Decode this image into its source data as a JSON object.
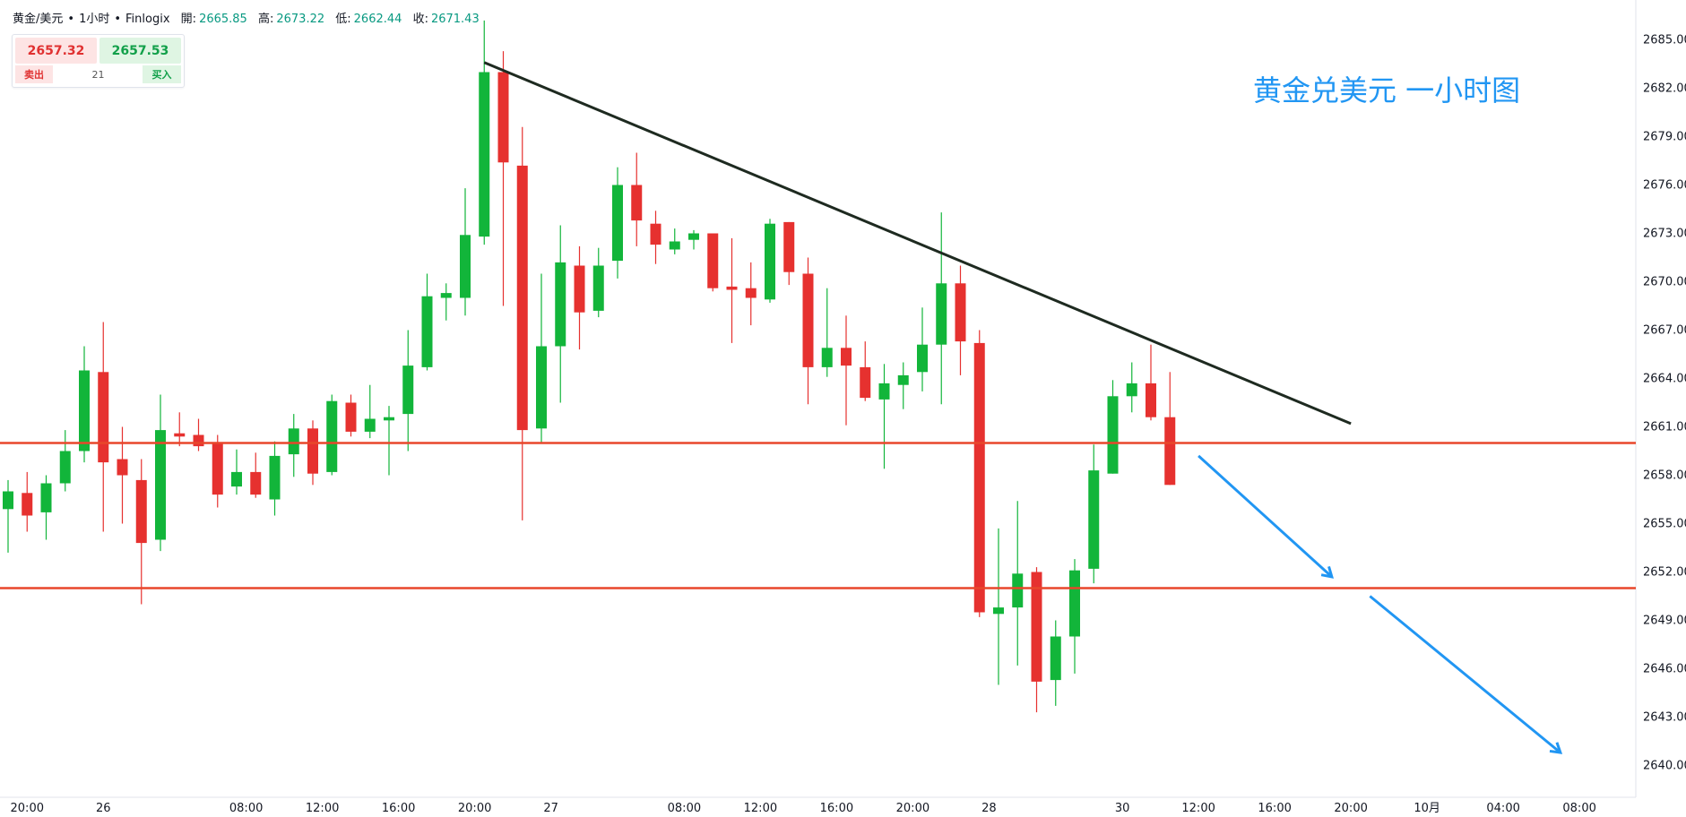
{
  "header": {
    "symbol": "黄金/美元",
    "interval": "1小时",
    "source": "Finlogix",
    "dot": "•",
    "open_label": "開:",
    "open": "2665.85",
    "high_label": "高:",
    "high": "2673.22",
    "low_label": "低:",
    "low": "2662.44",
    "close_label": "收:",
    "close": "2671.43"
  },
  "trade": {
    "sell_price": "2657.32",
    "buy_price": "2657.53",
    "sell_label": "卖出",
    "buy_label": "买入",
    "spread": "21"
  },
  "annotation": "黄金兑美元 一小时图",
  "colors": {
    "up": "#12b53a",
    "down": "#e6312f",
    "trendline": "#1e2a20",
    "support": "#e8472b",
    "arrow": "#2196f3",
    "grid_text": "#131722"
  },
  "chart_data": {
    "type": "candlestick",
    "y_ticks": [
      "2685.00",
      "2682.00",
      "2679.00",
      "2676.00",
      "2673.00",
      "2670.00",
      "2667.00",
      "2664.00",
      "2661.00",
      "2658.00",
      "2655.00",
      "2652.00",
      "2649.00",
      "2646.00",
      "2643.00",
      "2640.00"
    ],
    "ylim": [
      2638.5,
      2686.5
    ],
    "x_ticks": [
      {
        "label": "20:00",
        "i": 1
      },
      {
        "label": "26",
        "i": 5
      },
      {
        "label": "08:00",
        "i": 12.5
      },
      {
        "label": "12:00",
        "i": 16.5
      },
      {
        "label": "16:00",
        "i": 20.5
      },
      {
        "label": "20:00",
        "i": 24.5
      },
      {
        "label": "27",
        "i": 28.5
      },
      {
        "label": "08:00",
        "i": 35.5
      },
      {
        "label": "12:00",
        "i": 39.5
      },
      {
        "label": "16:00",
        "i": 43.5
      },
      {
        "label": "20:00",
        "i": 47.5
      },
      {
        "label": "28",
        "i": 51.5
      },
      {
        "label": "30",
        "i": 58.5
      },
      {
        "label": "12:00",
        "i": 62.5
      },
      {
        "label": "16:00",
        "i": 66.5
      },
      {
        "label": "20:00",
        "i": 70.5
      },
      {
        "label": "10月",
        "i": 74.5
      },
      {
        "label": "04:00",
        "i": 78.5
      },
      {
        "label": "08:00",
        "i": 82.5
      }
    ],
    "candles": [
      {
        "o": 2655.9,
        "h": 2657.7,
        "l": 2653.2,
        "c": 2657.0
      },
      {
        "o": 2656.9,
        "h": 2658.2,
        "l": 2654.5,
        "c": 2655.5
      },
      {
        "o": 2655.7,
        "h": 2658.0,
        "l": 2654.0,
        "c": 2657.5
      },
      {
        "o": 2657.5,
        "h": 2660.8,
        "l": 2657.0,
        "c": 2659.5
      },
      {
        "o": 2659.5,
        "h": 2666.0,
        "l": 2658.8,
        "c": 2664.5
      },
      {
        "o": 2664.4,
        "h": 2667.5,
        "l": 2654.5,
        "c": 2658.8
      },
      {
        "o": 2659.0,
        "h": 2661.0,
        "l": 2655.0,
        "c": 2658.0
      },
      {
        "o": 2657.7,
        "h": 2659.0,
        "l": 2650.0,
        "c": 2653.8
      },
      {
        "o": 2654.0,
        "h": 2663.0,
        "l": 2653.3,
        "c": 2660.8
      },
      {
        "o": 2660.6,
        "h": 2661.9,
        "l": 2659.8,
        "c": 2660.4
      },
      {
        "o": 2660.5,
        "h": 2661.5,
        "l": 2659.5,
        "c": 2659.8
      },
      {
        "o": 2660.0,
        "h": 2660.5,
        "l": 2656.0,
        "c": 2656.8
      },
      {
        "o": 2657.3,
        "h": 2659.6,
        "l": 2656.8,
        "c": 2658.2
      },
      {
        "o": 2658.2,
        "h": 2659.4,
        "l": 2656.6,
        "c": 2656.8
      },
      {
        "o": 2656.5,
        "h": 2660.1,
        "l": 2655.5,
        "c": 2659.2
      },
      {
        "o": 2659.3,
        "h": 2661.8,
        "l": 2657.9,
        "c": 2660.9
      },
      {
        "o": 2660.9,
        "h": 2661.4,
        "l": 2657.4,
        "c": 2658.1
      },
      {
        "o": 2658.2,
        "h": 2663.0,
        "l": 2658.0,
        "c": 2662.6
      },
      {
        "o": 2662.5,
        "h": 2663.0,
        "l": 2660.4,
        "c": 2660.7
      },
      {
        "o": 2660.7,
        "h": 2663.6,
        "l": 2660.3,
        "c": 2661.5
      },
      {
        "o": 2661.4,
        "h": 2662.3,
        "l": 2658.0,
        "c": 2661.6
      },
      {
        "o": 2661.8,
        "h": 2667.0,
        "l": 2659.5,
        "c": 2664.8
      },
      {
        "o": 2664.7,
        "h": 2670.5,
        "l": 2664.5,
        "c": 2669.1
      },
      {
        "o": 2669.0,
        "h": 2669.9,
        "l": 2667.6,
        "c": 2669.3
      },
      {
        "o": 2669.0,
        "h": 2675.8,
        "l": 2667.9,
        "c": 2672.9
      },
      {
        "o": 2672.8,
        "h": 2686.2,
        "l": 2672.3,
        "c": 2683.0
      },
      {
        "o": 2683.0,
        "h": 2684.3,
        "l": 2668.5,
        "c": 2677.4
      },
      {
        "o": 2677.2,
        "h": 2679.6,
        "l": 2655.2,
        "c": 2660.8
      },
      {
        "o": 2660.9,
        "h": 2670.5,
        "l": 2660.0,
        "c": 2666.0
      },
      {
        "o": 2666.0,
        "h": 2673.5,
        "l": 2662.5,
        "c": 2671.2
      },
      {
        "o": 2671.0,
        "h": 2672.2,
        "l": 2665.8,
        "c": 2668.1
      },
      {
        "o": 2668.2,
        "h": 2672.1,
        "l": 2667.8,
        "c": 2671.0
      },
      {
        "o": 2671.3,
        "h": 2677.1,
        "l": 2670.2,
        "c": 2676.0
      },
      {
        "o": 2676.0,
        "h": 2678.0,
        "l": 2672.2,
        "c": 2673.8
      },
      {
        "o": 2673.6,
        "h": 2674.4,
        "l": 2671.1,
        "c": 2672.3
      },
      {
        "o": 2672.0,
        "h": 2673.3,
        "l": 2671.7,
        "c": 2672.5
      },
      {
        "o": 2672.6,
        "h": 2673.2,
        "l": 2672.0,
        "c": 2673.0
      },
      {
        "o": 2673.0,
        "h": 2673.0,
        "l": 2669.4,
        "c": 2669.6
      },
      {
        "o": 2669.7,
        "h": 2672.7,
        "l": 2666.2,
        "c": 2669.5
      },
      {
        "o": 2669.6,
        "h": 2671.2,
        "l": 2667.3,
        "c": 2669.0
      },
      {
        "o": 2668.9,
        "h": 2673.9,
        "l": 2668.7,
        "c": 2673.6
      },
      {
        "o": 2673.7,
        "h": 2673.7,
        "l": 2669.8,
        "c": 2670.6
      },
      {
        "o": 2670.5,
        "h": 2671.5,
        "l": 2662.4,
        "c": 2664.7
      },
      {
        "o": 2664.7,
        "h": 2669.6,
        "l": 2664.1,
        "c": 2665.9
      },
      {
        "o": 2665.9,
        "h": 2667.9,
        "l": 2661.1,
        "c": 2664.8
      },
      {
        "o": 2664.7,
        "h": 2666.3,
        "l": 2662.6,
        "c": 2662.8
      },
      {
        "o": 2662.7,
        "h": 2664.9,
        "l": 2658.4,
        "c": 2663.7
      },
      {
        "o": 2663.6,
        "h": 2665.0,
        "l": 2662.1,
        "c": 2664.2
      },
      {
        "o": 2664.4,
        "h": 2668.4,
        "l": 2663.2,
        "c": 2666.1
      },
      {
        "o": 2666.1,
        "h": 2674.3,
        "l": 2662.4,
        "c": 2669.9
      },
      {
        "o": 2669.9,
        "h": 2671.0,
        "l": 2664.2,
        "c": 2666.3
      },
      {
        "o": 2666.2,
        "h": 2667.0,
        "l": 2649.2,
        "c": 2649.5
      },
      {
        "o": 2649.4,
        "h": 2654.7,
        "l": 2645.0,
        "c": 2649.8
      },
      {
        "o": 2649.8,
        "h": 2656.4,
        "l": 2646.2,
        "c": 2651.9
      },
      {
        "o": 2652.0,
        "h": 2652.3,
        "l": 2643.3,
        "c": 2645.2
      },
      {
        "o": 2645.3,
        "h": 2649.0,
        "l": 2643.7,
        "c": 2648.0
      },
      {
        "o": 2648.0,
        "h": 2652.8,
        "l": 2645.7,
        "c": 2652.1
      },
      {
        "o": 2652.2,
        "h": 2659.9,
        "l": 2651.3,
        "c": 2658.3
      },
      {
        "o": 2658.1,
        "h": 2663.9,
        "l": 2658.1,
        "c": 2662.9
      },
      {
        "o": 2662.9,
        "h": 2665.0,
        "l": 2661.9,
        "c": 2663.7
      },
      {
        "o": 2663.7,
        "h": 2666.1,
        "l": 2661.4,
        "c": 2661.6
      },
      {
        "o": 2661.6,
        "h": 2664.4,
        "l": 2657.4,
        "c": 2657.4
      }
    ],
    "trendline": {
      "from": {
        "i": 25,
        "price": 2683.6
      },
      "to": {
        "i": 70.5,
        "price": 2661.2
      }
    },
    "support_levels": [
      2660.0,
      2651.0
    ],
    "arrows": [
      {
        "from": {
          "i": 62.5,
          "price": 2659.2
        },
        "to": {
          "i": 69.5,
          "price": 2651.7
        }
      },
      {
        "from": {
          "i": 71.5,
          "price": 2650.5
        },
        "to": {
          "i": 81.5,
          "price": 2640.8
        }
      }
    ],
    "layout_hint_legend": "none"
  }
}
